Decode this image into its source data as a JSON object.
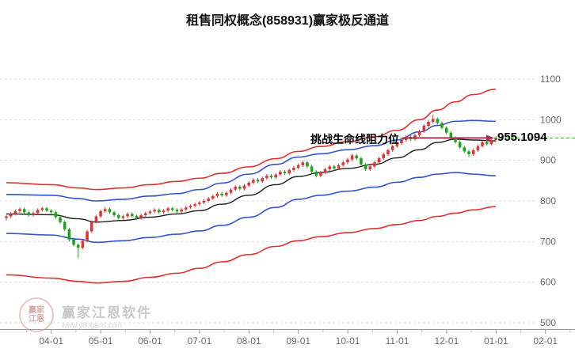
{
  "watermark": {
    "brand": "赢家江恩软件",
    "url": "www.y80gann.com",
    "logo_line1": "赢家",
    "logo_line2": "江恩"
  },
  "chart_data": {
    "type": "candlestick",
    "title": "租售同权概念(858931)赢家极反通道",
    "x_ticks": [
      "04-01",
      "05-01",
      "06-01",
      "07-01",
      "08-01",
      "09-01",
      "10-01",
      "11-01",
      "12-01",
      "01-01",
      "02-01"
    ],
    "y_ticks": [
      500,
      600,
      700,
      800,
      900,
      1000,
      1100
    ],
    "ylim": [
      500,
      1100
    ],
    "grid": "horizontal-dashed",
    "annotation": {
      "label": "挑战生命线阻力位",
      "value": "955.1094"
    },
    "level_value": 955.1094,
    "candles": [
      [
        758,
        766,
        752,
        762
      ],
      [
        762,
        772,
        758,
        768
      ],
      [
        768,
        779,
        764,
        775
      ],
      [
        775,
        784,
        771,
        780
      ],
      [
        780,
        784,
        768,
        772
      ],
      [
        772,
        776,
        761,
        765
      ],
      [
        765,
        774,
        761,
        770
      ],
      [
        770,
        782,
        766,
        778
      ],
      [
        778,
        786,
        774,
        782
      ],
      [
        782,
        786,
        772,
        776
      ],
      [
        776,
        780,
        768,
        772
      ],
      [
        772,
        776,
        756,
        760
      ],
      [
        760,
        764,
        744,
        748
      ],
      [
        748,
        752,
        726,
        730
      ],
      [
        730,
        734,
        700,
        705
      ],
      [
        705,
        710,
        688,
        692
      ],
      [
        692,
        696,
        660,
        685
      ],
      [
        685,
        706,
        681,
        702
      ],
      [
        702,
        729,
        698,
        725
      ],
      [
        725,
        752,
        721,
        748
      ],
      [
        748,
        766,
        744,
        762
      ],
      [
        762,
        779,
        758,
        775
      ],
      [
        775,
        785,
        771,
        780
      ],
      [
        780,
        784,
        768,
        772
      ],
      [
        772,
        776,
        761,
        765
      ],
      [
        765,
        769,
        754,
        758
      ],
      [
        758,
        766,
        754,
        762
      ],
      [
        762,
        772,
        758,
        768
      ],
      [
        768,
        772,
        759,
        763
      ],
      [
        763,
        767,
        754,
        758
      ],
      [
        758,
        769,
        754,
        765
      ],
      [
        765,
        774,
        761,
        770
      ],
      [
        770,
        778,
        766,
        774
      ],
      [
        774,
        782,
        770,
        778
      ],
      [
        778,
        782,
        768,
        772
      ],
      [
        772,
        780,
        768,
        776
      ],
      [
        776,
        786,
        772,
        782
      ],
      [
        782,
        786,
        774,
        778
      ],
      [
        778,
        782,
        770,
        774
      ],
      [
        774,
        783,
        770,
        779
      ],
      [
        779,
        788,
        775,
        784
      ],
      [
        784,
        792,
        780,
        788
      ],
      [
        788,
        796,
        784,
        792
      ],
      [
        792,
        800,
        788,
        796
      ],
      [
        796,
        804,
        792,
        800
      ],
      [
        800,
        810,
        796,
        806
      ],
      [
        806,
        816,
        802,
        812
      ],
      [
        812,
        822,
        808,
        818
      ],
      [
        818,
        822,
        810,
        814
      ],
      [
        814,
        824,
        810,
        820
      ],
      [
        820,
        832,
        816,
        828
      ],
      [
        828,
        839,
        824,
        835
      ],
      [
        835,
        839,
        826,
        830
      ],
      [
        830,
        842,
        826,
        838
      ],
      [
        838,
        849,
        834,
        845
      ],
      [
        845,
        856,
        841,
        852
      ],
      [
        852,
        856,
        844,
        848
      ],
      [
        848,
        860,
        844,
        856
      ],
      [
        856,
        866,
        852,
        862
      ],
      [
        862,
        866,
        854,
        858
      ],
      [
        858,
        869,
        854,
        865
      ],
      [
        865,
        876,
        861,
        872
      ],
      [
        872,
        876,
        864,
        868
      ],
      [
        868,
        880,
        864,
        876
      ],
      [
        876,
        886,
        872,
        882
      ],
      [
        882,
        892,
        878,
        888
      ],
      [
        888,
        900,
        884,
        895
      ],
      [
        895,
        899,
        881,
        885
      ],
      [
        885,
        889,
        868,
        872
      ],
      [
        872,
        876,
        858,
        862
      ],
      [
        862,
        874,
        858,
        870
      ],
      [
        870,
        882,
        866,
        878
      ],
      [
        878,
        889,
        874,
        885
      ],
      [
        885,
        889,
        876,
        880
      ],
      [
        880,
        892,
        876,
        888
      ],
      [
        888,
        899,
        884,
        895
      ],
      [
        895,
        906,
        891,
        902
      ],
      [
        902,
        916,
        898,
        912
      ],
      [
        912,
        916,
        901,
        905
      ],
      [
        905,
        909,
        886,
        890
      ],
      [
        890,
        894,
        874,
        878
      ],
      [
        878,
        889,
        874,
        885
      ],
      [
        885,
        899,
        881,
        895
      ],
      [
        895,
        909,
        891,
        905
      ],
      [
        905,
        919,
        901,
        915
      ],
      [
        915,
        929,
        911,
        925
      ],
      [
        925,
        939,
        921,
        935
      ],
      [
        935,
        946,
        931,
        942
      ],
      [
        942,
        954,
        938,
        950
      ],
      [
        950,
        962,
        946,
        958
      ],
      [
        958,
        962,
        948,
        952
      ],
      [
        952,
        966,
        948,
        962
      ],
      [
        962,
        976,
        958,
        972
      ],
      [
        972,
        989,
        968,
        985
      ],
      [
        985,
        999,
        981,
        995
      ],
      [
        995,
        1012,
        991,
        1002
      ],
      [
        1002,
        1006,
        988,
        992
      ],
      [
        992,
        996,
        976,
        980
      ],
      [
        980,
        984,
        964,
        968
      ],
      [
        968,
        972,
        951,
        955
      ],
      [
        955,
        959,
        941,
        945
      ],
      [
        945,
        949,
        928,
        932
      ],
      [
        932,
        936,
        918,
        922
      ],
      [
        922,
        926,
        908,
        915
      ],
      [
        915,
        929,
        911,
        925
      ],
      [
        925,
        939,
        921,
        935
      ],
      [
        935,
        949,
        931,
        945
      ],
      [
        945,
        949,
        936,
        940
      ],
      [
        940,
        954,
        936,
        950
      ],
      [
        950,
        959,
        946,
        955
      ]
    ],
    "bands": {
      "upper_red": [
        [
          0,
          845
        ],
        [
          10,
          840
        ],
        [
          16,
          832
        ],
        [
          20,
          828
        ],
        [
          26,
          832
        ],
        [
          32,
          840
        ],
        [
          38,
          848
        ],
        [
          43,
          856
        ],
        [
          48,
          868
        ],
        [
          54,
          884
        ],
        [
          60,
          904
        ],
        [
          65,
          922
        ],
        [
          70,
          934
        ],
        [
          76,
          946
        ],
        [
          82,
          958
        ],
        [
          87,
          974
        ],
        [
          92,
          1000
        ],
        [
          96,
          1024
        ],
        [
          100,
          1044
        ],
        [
          104,
          1062
        ],
        [
          109,
          1075
        ]
      ],
      "upper_blue": [
        [
          0,
          816
        ],
        [
          10,
          814
        ],
        [
          16,
          806
        ],
        [
          20,
          800
        ],
        [
          26,
          804
        ],
        [
          32,
          812
        ],
        [
          38,
          818
        ],
        [
          43,
          828
        ],
        [
          48,
          844
        ],
        [
          54,
          866
        ],
        [
          60,
          890
        ],
        [
          65,
          908
        ],
        [
          70,
          916
        ],
        [
          76,
          926
        ],
        [
          82,
          936
        ],
        [
          87,
          950
        ],
        [
          92,
          970
        ],
        [
          96,
          986
        ],
        [
          100,
          996
        ],
        [
          104,
          998
        ],
        [
          109,
          996
        ]
      ],
      "mid": [
        [
          0,
          768
        ],
        [
          10,
          766
        ],
        [
          16,
          756
        ],
        [
          20,
          748
        ],
        [
          26,
          752
        ],
        [
          32,
          760
        ],
        [
          38,
          768
        ],
        [
          43,
          776
        ],
        [
          48,
          792
        ],
        [
          54,
          814
        ],
        [
          60,
          840
        ],
        [
          65,
          860
        ],
        [
          70,
          870
        ],
        [
          76,
          880
        ],
        [
          82,
          890
        ],
        [
          87,
          906
        ],
        [
          92,
          926
        ],
        [
          96,
          944
        ],
        [
          100,
          952
        ],
        [
          104,
          950
        ],
        [
          109,
          948
        ]
      ],
      "lower_blue": [
        [
          0,
          720
        ],
        [
          10,
          716
        ],
        [
          16,
          706
        ],
        [
          20,
          698
        ],
        [
          26,
          702
        ],
        [
          32,
          710
        ],
        [
          38,
          718
        ],
        [
          43,
          726
        ],
        [
          48,
          740
        ],
        [
          54,
          760
        ],
        [
          60,
          784
        ],
        [
          65,
          804
        ],
        [
          70,
          814
        ],
        [
          76,
          824
        ],
        [
          82,
          834
        ],
        [
          87,
          846
        ],
        [
          92,
          858
        ],
        [
          96,
          866
        ],
        [
          100,
          870
        ],
        [
          104,
          866
        ],
        [
          109,
          862
        ]
      ],
      "lower_red": [
        [
          0,
          618
        ],
        [
          10,
          610
        ],
        [
          16,
          602
        ],
        [
          20,
          598
        ],
        [
          26,
          602
        ],
        [
          32,
          612
        ],
        [
          38,
          622
        ],
        [
          43,
          634
        ],
        [
          48,
          650
        ],
        [
          54,
          668
        ],
        [
          60,
          688
        ],
        [
          65,
          702
        ],
        [
          70,
          712
        ],
        [
          76,
          722
        ],
        [
          82,
          732
        ],
        [
          87,
          742
        ],
        [
          92,
          752
        ],
        [
          96,
          762
        ],
        [
          100,
          770
        ],
        [
          104,
          778
        ],
        [
          109,
          786
        ]
      ]
    },
    "colors": {
      "up": "#e03537",
      "down": "#1fa31f",
      "band_red": "#e23030",
      "band_blue": "#3353cf",
      "band_mid": "#1a1a1a",
      "grid": "#dcdcdc",
      "axis_text": "#6b6b6b",
      "axis_line": "#9a9a9a",
      "level": "#2ea82e",
      "arrow": "#b03055"
    }
  }
}
